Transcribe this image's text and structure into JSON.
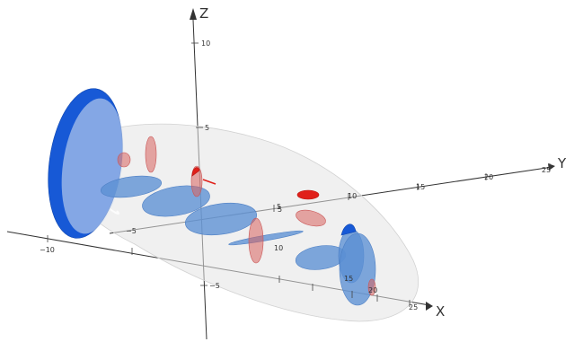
{
  "axes": {
    "x_name": "X",
    "y_name": "Y",
    "z_name": "Z",
    "x_ticks": [
      "−10",
      "−5",
      "5",
      "10",
      "15",
      "20",
      "25"
    ],
    "y_ticks": [
      "5",
      "10",
      "15",
      "20",
      "25"
    ],
    "z_ticks": [
      "10",
      "5",
      "−5"
    ]
  },
  "colors": {
    "blue": "#5b8fd3",
    "blue_dark": "#1759d6",
    "red": "#d9625f",
    "red_dark": "#e0201a",
    "ellipsoid": "#e3e3e3"
  }
}
